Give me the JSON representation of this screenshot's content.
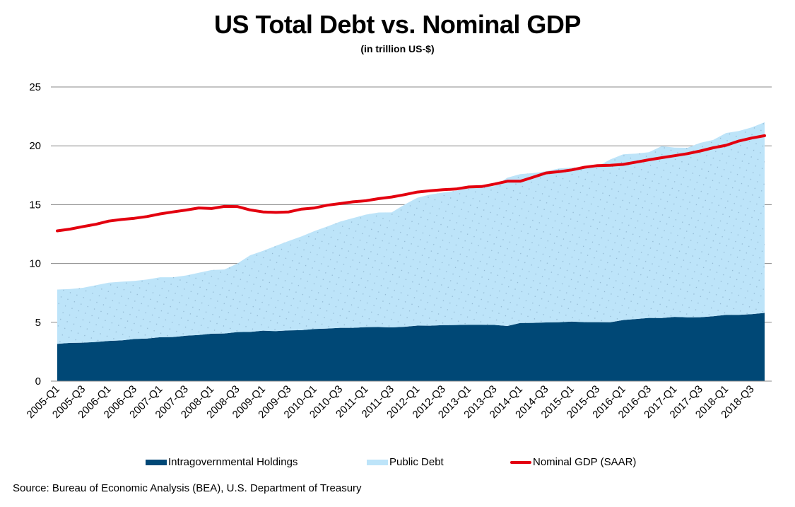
{
  "chart_data": {
    "type": "area",
    "title": "US Total Debt vs. Nominal GDP",
    "subtitle": "(in trillion US-$)",
    "xlabel": "",
    "ylabel": "",
    "ylim": [
      0,
      25
    ],
    "yticks": [
      0,
      5,
      10,
      15,
      20,
      25
    ],
    "grid": true,
    "legend_position": "bottom",
    "x": [
      "2005-Q1",
      "2005-Q2",
      "2005-Q3",
      "2005-Q4",
      "2006-Q1",
      "2006-Q2",
      "2006-Q3",
      "2006-Q4",
      "2007-Q1",
      "2007-Q2",
      "2007-Q3",
      "2007-Q4",
      "2008-Q1",
      "2008-Q2",
      "2008-Q3",
      "2008-Q4",
      "2009-Q1",
      "2009-Q2",
      "2009-Q3",
      "2009-Q4",
      "2010-Q1",
      "2010-Q2",
      "2010-Q3",
      "2010-Q4",
      "2011-Q1",
      "2011-Q2",
      "2011-Q3",
      "2011-Q4",
      "2012-Q1",
      "2012-Q2",
      "2012-Q3",
      "2012-Q4",
      "2013-Q1",
      "2013-Q2",
      "2013-Q3",
      "2013-Q4",
      "2014-Q1",
      "2014-Q2",
      "2014-Q3",
      "2014-Q4",
      "2015-Q1",
      "2015-Q2",
      "2015-Q3",
      "2015-Q4",
      "2016-Q1",
      "2016-Q2",
      "2016-Q3",
      "2016-Q4",
      "2017-Q1",
      "2017-Q2",
      "2017-Q3",
      "2017-Q4",
      "2018-Q1",
      "2018-Q2",
      "2018-Q3",
      "2018-Q4"
    ],
    "xtick_labels": [
      "2005-Q1",
      "2005-Q3",
      "2006-Q1",
      "2006-Q3",
      "2007-Q1",
      "2007-Q3",
      "2008-Q1",
      "2008-Q3",
      "2009-Q1",
      "2009-Q3",
      "2010-Q1",
      "2010-Q3",
      "2011-Q1",
      "2011-Q3",
      "2012-Q1",
      "2012-Q3",
      "2013-Q1",
      "2013-Q3",
      "2014-Q1",
      "2014-Q3",
      "2015-Q1",
      "2015-Q3",
      "2016-Q1",
      "2016-Q3",
      "2017-Q1",
      "2017-Q3",
      "2018-Q1",
      "2018-Q3"
    ],
    "series": [
      {
        "name": "Intragovernmental Holdings",
        "kind": "stacked-area",
        "color": "#004876",
        "values": [
          3.17,
          3.25,
          3.27,
          3.33,
          3.42,
          3.46,
          3.58,
          3.62,
          3.73,
          3.75,
          3.86,
          3.92,
          4.03,
          4.05,
          4.17,
          4.18,
          4.29,
          4.25,
          4.31,
          4.33,
          4.43,
          4.47,
          4.53,
          4.53,
          4.59,
          4.6,
          4.57,
          4.62,
          4.72,
          4.71,
          4.76,
          4.77,
          4.79,
          4.79,
          4.78,
          4.69,
          4.94,
          4.95,
          4.99,
          5.0,
          5.06,
          5.01,
          5.01,
          5.0,
          5.19,
          5.28,
          5.37,
          5.36,
          5.46,
          5.42,
          5.43,
          5.51,
          5.64,
          5.64,
          5.7,
          5.8
        ]
      },
      {
        "name": "Public Debt",
        "kind": "stacked-area",
        "color": "#bde4f9",
        "values": [
          4.61,
          4.58,
          4.66,
          4.82,
          4.95,
          4.99,
          4.94,
          5.02,
          5.1,
          5.08,
          5.12,
          5.29,
          5.41,
          5.44,
          5.82,
          6.52,
          6.78,
          7.25,
          7.6,
          7.98,
          8.33,
          8.68,
          9.03,
          9.33,
          9.56,
          9.73,
          9.77,
          10.38,
          10.87,
          11.15,
          11.27,
          11.41,
          11.6,
          11.72,
          11.8,
          12.6,
          12.65,
          12.73,
          12.84,
          13.07,
          13.09,
          13.15,
          13.23,
          13.84,
          14.09,
          14.06,
          14.09,
          14.61,
          14.39,
          14.41,
          14.82,
          14.99,
          15.45,
          15.62,
          15.87,
          16.2
        ]
      },
      {
        "name": "Nominal GDP (SAAR)",
        "kind": "line",
        "color": "#e3000f",
        "values": [
          12.77,
          12.92,
          13.14,
          13.33,
          13.6,
          13.74,
          13.84,
          13.99,
          14.21,
          14.38,
          14.54,
          14.72,
          14.67,
          14.85,
          14.84,
          14.55,
          14.38,
          14.34,
          14.38,
          14.62,
          14.72,
          14.95,
          15.09,
          15.24,
          15.33,
          15.51,
          15.65,
          15.85,
          16.07,
          16.18,
          16.27,
          16.33,
          16.5,
          16.54,
          16.75,
          16.99,
          16.99,
          17.33,
          17.69,
          17.8,
          17.95,
          18.18,
          18.32,
          18.35,
          18.42,
          18.61,
          18.81,
          18.99,
          19.16,
          19.33,
          19.56,
          19.83,
          20.04,
          20.41,
          20.66,
          20.86
        ]
      }
    ],
    "source": "Source: Bureau of Economic Analysis (BEA), U.S. Department of Treasury"
  },
  "legend": {
    "items": [
      {
        "label": "Intragovernmental Holdings",
        "color": "#004876",
        "kind": "area"
      },
      {
        "label": "Public Debt",
        "color": "#bde4f9",
        "kind": "area"
      },
      {
        "label": "Nominal GDP (SAAR)",
        "color": "#e3000f",
        "kind": "line"
      }
    ]
  },
  "colors": {
    "gridline": "#888888",
    "dot_pattern": "#8fb5cf"
  }
}
